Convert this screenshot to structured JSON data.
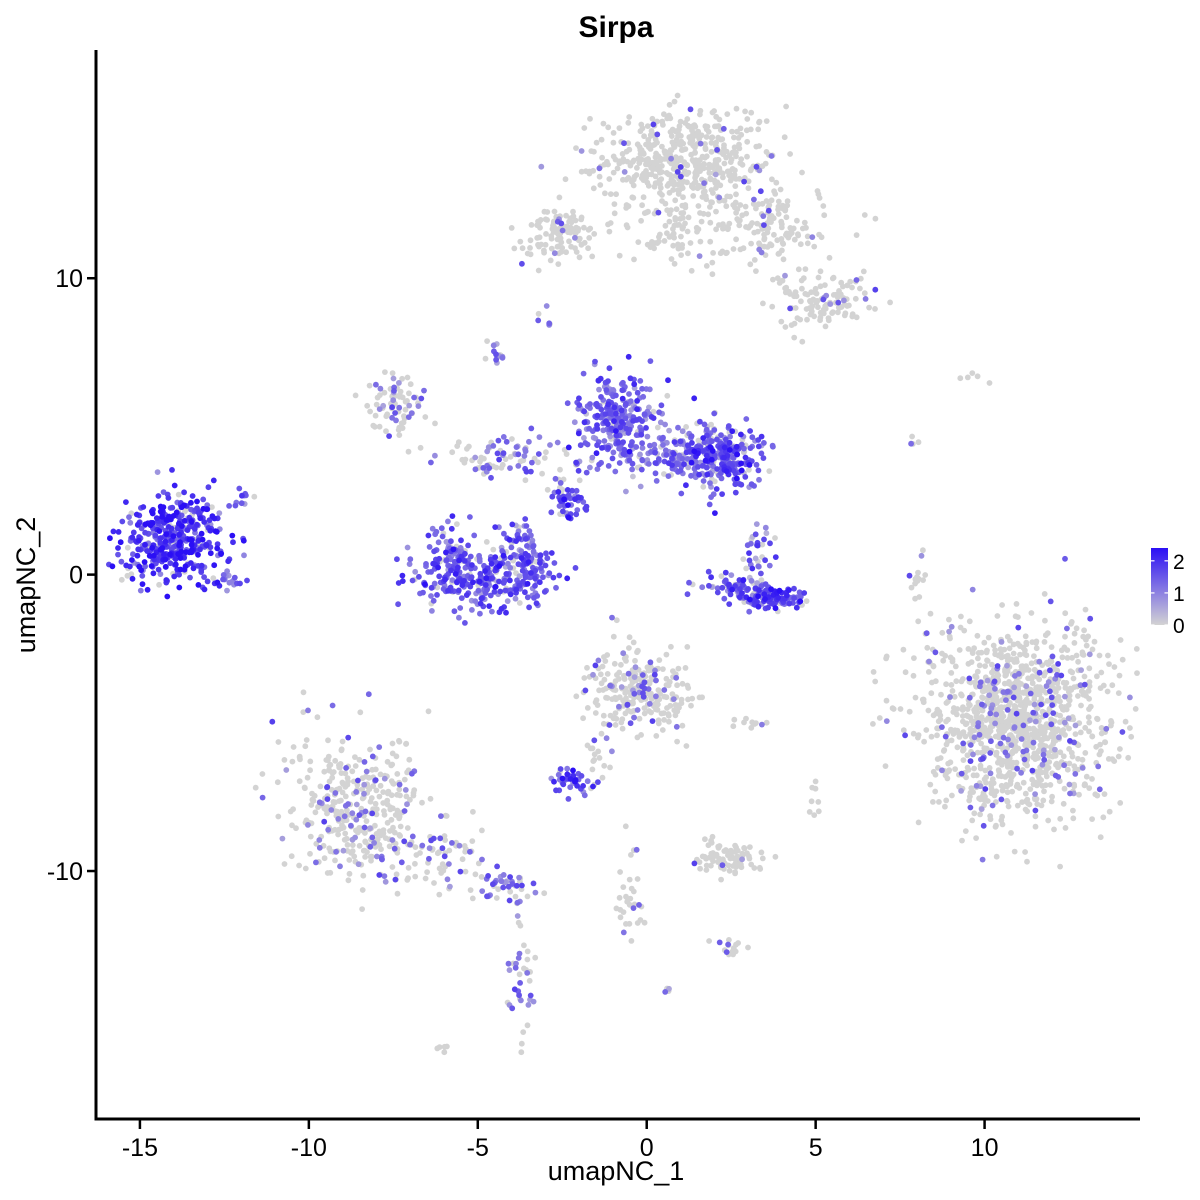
{
  "chart_data": {
    "type": "scatter",
    "title": "Sirpa",
    "xlabel": "umapNC_1",
    "ylabel": "umapNC_2",
    "xlim": [
      -16.3,
      14.6
    ],
    "ylim": [
      -18.4,
      17.7
    ],
    "x_ticks": [
      -15,
      -10,
      -5,
      0,
      5,
      10
    ],
    "y_ticks": [
      -10,
      0,
      10
    ],
    "x_tick_labels": [
      "-15",
      "-10",
      "-5",
      "0",
      "5",
      "10"
    ],
    "y_tick_labels": [
      "-10",
      "0",
      "10"
    ],
    "grid": false,
    "color_scale": {
      "low_color": "#d3d3d3",
      "high_color": "#2b0ff5",
      "min": 0,
      "max": 2.4,
      "legend_ticks": [
        0,
        1,
        2
      ],
      "legend_tick_labels": [
        "0",
        "1",
        "2"
      ],
      "legend_position": "right"
    },
    "clusters": [
      {
        "cx": -14.0,
        "cy": 1.2,
        "sx": 0.75,
        "sy": 0.75,
        "n": 420,
        "expr": 1.9
      },
      {
        "cx": -11.9,
        "cy": 2.6,
        "sx": 0.15,
        "sy": 0.2,
        "n": 10,
        "expr": 1.3
      },
      {
        "cx": -12.3,
        "cy": -0.1,
        "sx": 0.25,
        "sy": 0.15,
        "n": 15,
        "expr": 0.9
      },
      {
        "cx": -4.8,
        "cy": -0.1,
        "sx": 1.1,
        "sy": 0.55,
        "n": 320,
        "expr": 1.5
      },
      {
        "cx": -5.8,
        "cy": 0.8,
        "sx": 0.3,
        "sy": 0.5,
        "n": 60,
        "expr": 1.4
      },
      {
        "cx": -3.6,
        "cy": 0.9,
        "sx": 0.3,
        "sy": 0.5,
        "n": 60,
        "expr": 1.3
      },
      {
        "cx": -0.9,
        "cy": 5.2,
        "sx": 0.55,
        "sy": 0.8,
        "n": 280,
        "expr": 1.3
      },
      {
        "cx": 2.2,
        "cy": 4.0,
        "sx": 0.55,
        "sy": 0.6,
        "n": 250,
        "expr": 1.5
      },
      {
        "cx": 0.8,
        "cy": 4.1,
        "sx": 0.7,
        "sy": 0.45,
        "n": 120,
        "expr": 1.1
      },
      {
        "cx": -2.4,
        "cy": 2.6,
        "sx": 0.3,
        "sy": 0.35,
        "n": 50,
        "expr": 1.7
      },
      {
        "cx": -4.3,
        "cy": 4.0,
        "sx": 0.9,
        "sy": 0.4,
        "n": 80,
        "expr": 0.6
      },
      {
        "cx": -7.4,
        "cy": 5.7,
        "sx": 0.4,
        "sy": 0.5,
        "n": 80,
        "expr": 0.3
      },
      {
        "cx": -4.5,
        "cy": 7.4,
        "sx": 0.15,
        "sy": 0.25,
        "n": 15,
        "expr": 1.2
      },
      {
        "cx": 3.6,
        "cy": -0.8,
        "sx": 0.5,
        "sy": 0.2,
        "n": 120,
        "expr": 1.6
      },
      {
        "cx": 2.5,
        "cy": -0.3,
        "sx": 0.5,
        "sy": 0.2,
        "n": 50,
        "expr": 1.3
      },
      {
        "cx": 3.3,
        "cy": 0.8,
        "sx": 0.2,
        "sy": 0.4,
        "n": 30,
        "expr": 1.2
      },
      {
        "cx": 1.1,
        "cy": 14.0,
        "sx": 1.2,
        "sy": 0.8,
        "n": 500,
        "expr": 0.05
      },
      {
        "cx": 3.5,
        "cy": 11.8,
        "sx": 1.0,
        "sy": 0.6,
        "n": 150,
        "expr": 0.05
      },
      {
        "cx": 5.3,
        "cy": 9.3,
        "sx": 0.7,
        "sy": 0.5,
        "n": 120,
        "expr": 0.05
      },
      {
        "cx": -2.5,
        "cy": 11.5,
        "sx": 0.6,
        "sy": 0.4,
        "n": 110,
        "expr": 0.08
      },
      {
        "cx": 0.8,
        "cy": 11.5,
        "sx": 0.6,
        "sy": 0.5,
        "n": 60,
        "expr": 0.03
      },
      {
        "cx": 11.0,
        "cy": -5.0,
        "sx": 1.4,
        "sy": 1.6,
        "n": 1200,
        "expr": 0.12
      },
      {
        "cx": -8.5,
        "cy": -8.0,
        "sx": 1.0,
        "sy": 1.3,
        "n": 380,
        "expr": 0.2
      },
      {
        "cx": -6.0,
        "cy": -9.5,
        "sx": 0.8,
        "sy": 0.5,
        "n": 60,
        "expr": 0.4
      },
      {
        "cx": -4.3,
        "cy": -10.5,
        "sx": 0.4,
        "sy": 0.3,
        "n": 40,
        "expr": 0.6
      },
      {
        "cx": -3.7,
        "cy": -13.5,
        "sx": 0.25,
        "sy": 1.0,
        "n": 40,
        "expr": 0.35
      },
      {
        "cx": -0.5,
        "cy": -3.8,
        "sx": 0.6,
        "sy": 0.7,
        "n": 200,
        "expr": 0.15
      },
      {
        "cx": 0.8,
        "cy": -4.2,
        "sx": 0.4,
        "sy": 0.6,
        "n": 50,
        "expr": 0.1
      },
      {
        "cx": -2.2,
        "cy": -7.0,
        "sx": 0.3,
        "sy": 0.2,
        "n": 40,
        "expr": 1.5
      },
      {
        "cx": 2.5,
        "cy": -9.6,
        "sx": 0.5,
        "sy": 0.3,
        "n": 80,
        "expr": 0.05
      },
      {
        "cx": -0.5,
        "cy": -10.8,
        "sx": 0.2,
        "sy": 0.8,
        "n": 30,
        "expr": 0.05
      },
      {
        "cx": -1.5,
        "cy": -6.0,
        "sx": 0.2,
        "sy": 0.5,
        "n": 20,
        "expr": 0.3
      },
      {
        "cx": 2.5,
        "cy": -12.6,
        "sx": 0.3,
        "sy": 0.2,
        "n": 15,
        "expr": 0.3
      },
      {
        "cx": 8.0,
        "cy": -0.2,
        "sx": 0.1,
        "sy": 0.6,
        "n": 15,
        "expr": 0.1
      },
      {
        "cx": 5.0,
        "cy": -7.5,
        "sx": 0.1,
        "sy": 0.3,
        "n": 8,
        "expr": 0.05
      },
      {
        "cx": 3.2,
        "cy": -5.0,
        "sx": 0.3,
        "sy": 0.1,
        "n": 10,
        "expr": 0.05
      },
      {
        "cx": 9.6,
        "cy": 6.7,
        "sx": 0.2,
        "sy": 0.1,
        "n": 5,
        "expr": 0.05
      },
      {
        "cx": 7.8,
        "cy": 4.7,
        "sx": 0.15,
        "sy": 0.2,
        "n": 4,
        "expr": 0.05
      },
      {
        "cx": -6.0,
        "cy": -16.0,
        "sx": 0.1,
        "sy": 0.1,
        "n": 5,
        "expr": 0.05
      },
      {
        "cx": 0.6,
        "cy": -14.0,
        "sx": 0.05,
        "sy": 0.05,
        "n": 4,
        "expr": 1.0
      },
      {
        "cx": -3.0,
        "cy": 8.6,
        "sx": 0.15,
        "sy": 0.2,
        "n": 6,
        "expr": 0.6
      }
    ]
  }
}
